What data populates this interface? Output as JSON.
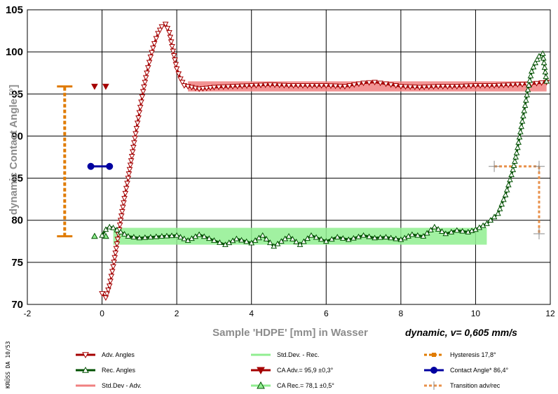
{
  "chart_data": {
    "type": "line",
    "ylabel": "dynamic Contact Angle [°]",
    "xlabel": "Sample 'HDPE' [mm] in Wasser",
    "subtitle": "dynamic, v= 0,605 mm/s",
    "xlim": [
      -2,
      12
    ],
    "ylim": [
      70,
      105
    ],
    "x_ticks": [
      -2,
      0,
      2,
      4,
      6,
      8,
      10,
      12
    ],
    "y_ticks": [
      70,
      75,
      80,
      85,
      90,
      95,
      100,
      105
    ],
    "grid": true,
    "legend_placement": "bottom",
    "side_label": "KRÜSS DA 10/53",
    "colors": {
      "adv": "#a50000",
      "adv_std": "#f08080",
      "rec": "#005000",
      "rec_std": "#90ee90",
      "hysteresis": "#e07b00",
      "contact_angle": "#0000a0",
      "transition": "#e8904a"
    },
    "series": [
      {
        "name": "Adv. Angles",
        "x": [
          0.0,
          0.1,
          0.2,
          0.3,
          0.4,
          0.5,
          0.6,
          0.7,
          0.8,
          0.9,
          1.0,
          1.1,
          1.2,
          1.3,
          1.4,
          1.5,
          1.6,
          1.7,
          1.8,
          1.9,
          2.0,
          2.1,
          2.2,
          2.4,
          2.6,
          2.8,
          3.0,
          3.5,
          4.0,
          4.5,
          5.0,
          5.5,
          6.0,
          6.5,
          7.0,
          7.3,
          7.6,
          8.0,
          8.5,
          9.0,
          9.5,
          10.0,
          10.5,
          11.0,
          11.5,
          11.9
        ],
        "values": [
          71.3,
          70.8,
          72.2,
          74.5,
          77.2,
          80.0,
          82.6,
          85.0,
          87.6,
          90.3,
          92.8,
          95.3,
          97.5,
          99.4,
          101.0,
          102.2,
          103.0,
          103.3,
          102.3,
          100.1,
          98.0,
          96.8,
          96.0,
          95.8,
          95.6,
          95.7,
          95.8,
          95.9,
          96.0,
          96.1,
          96.0,
          96.0,
          96.0,
          95.9,
          96.3,
          96.4,
          96.2,
          95.9,
          95.8,
          95.9,
          95.9,
          96.0,
          96.0,
          96.1,
          96.2,
          96.4
        ]
      },
      {
        "name": "Rec. Angles",
        "x": [
          0.0,
          0.1,
          0.2,
          0.3,
          0.5,
          0.7,
          1.0,
          1.3,
          1.6,
          2.0,
          2.3,
          2.6,
          3.0,
          3.3,
          3.6,
          4.0,
          4.3,
          4.6,
          5.0,
          5.3,
          5.6,
          6.0,
          6.3,
          6.6,
          7.0,
          7.3,
          7.6,
          8.0,
          8.3,
          8.6,
          8.9,
          9.2,
          9.5,
          9.8,
          10.0,
          10.3,
          10.6,
          10.8,
          11.0,
          11.1,
          11.2,
          11.3,
          11.4,
          11.5,
          11.6,
          11.7,
          11.8,
          11.9
        ],
        "values": [
          78.2,
          78.9,
          79.2,
          79.1,
          78.6,
          78.1,
          77.9,
          78.0,
          78.1,
          78.2,
          77.6,
          78.3,
          77.6,
          77.1,
          77.8,
          77.3,
          78.2,
          76.9,
          78.1,
          77.1,
          78.2,
          77.5,
          78.0,
          77.7,
          78.2,
          77.9,
          78.0,
          77.7,
          78.3,
          78.1,
          79.2,
          78.4,
          78.8,
          78.6,
          78.9,
          79.6,
          80.8,
          83.0,
          86.0,
          88.0,
          90.5,
          93.0,
          95.5,
          97.7,
          98.7,
          99.5,
          99.8,
          96.5
        ]
      },
      {
        "name": "Std.Dev - Adv.",
        "x": [
          2.3,
          11.9
        ],
        "y": [
          95.9,
          95.9
        ],
        "band": 0.6
      },
      {
        "name": "Std.Dev. - Rec.",
        "x": [
          0.3,
          10.3
        ],
        "y": [
          78.1,
          78.1
        ],
        "band": 1.0
      },
      {
        "name": "CA Adv.= 95,9 ±0,3°",
        "x": [
          -0.2,
          0.1
        ],
        "y": [
          95.9,
          95.9
        ]
      },
      {
        "name": "CA Rec.= 78,1 ±0,5°",
        "x": [
          -0.2,
          0.1
        ],
        "y": [
          78.1,
          78.1
        ]
      },
      {
        "name": "Hysteresis 17,8°",
        "x": [
          -1.0,
          -1.0
        ],
        "y": [
          78.1,
          95.9
        ]
      },
      {
        "name": "Contact Angle* 86,4°",
        "x": [
          -0.3,
          0.2
        ],
        "y": [
          86.4,
          86.4
        ]
      },
      {
        "name": "Transition adv/rec",
        "x": [
          10.5,
          11.7,
          11.7
        ],
        "y": [
          86.4,
          86.4,
          78.4
        ]
      }
    ]
  }
}
